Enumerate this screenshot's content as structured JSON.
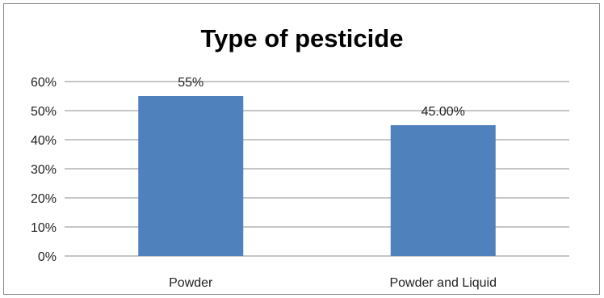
{
  "chart_data": {
    "type": "bar",
    "title": "Type of pesticide",
    "categories": [
      "Powder",
      "Powder and Liquid"
    ],
    "values": [
      55,
      45
    ],
    "data_labels": [
      "55%",
      "45.00%"
    ],
    "ylim": [
      0,
      60
    ],
    "y_ticks": [
      0,
      10,
      20,
      30,
      40,
      50,
      60
    ],
    "y_tick_labels": [
      "0%",
      "10%",
      "20%",
      "30%",
      "40%",
      "50%",
      "60%"
    ],
    "xlabel": "",
    "ylabel": "",
    "grid": true,
    "legend": false,
    "bar_color": "#4f81bd",
    "gridline_color": "#8c8c8c"
  }
}
